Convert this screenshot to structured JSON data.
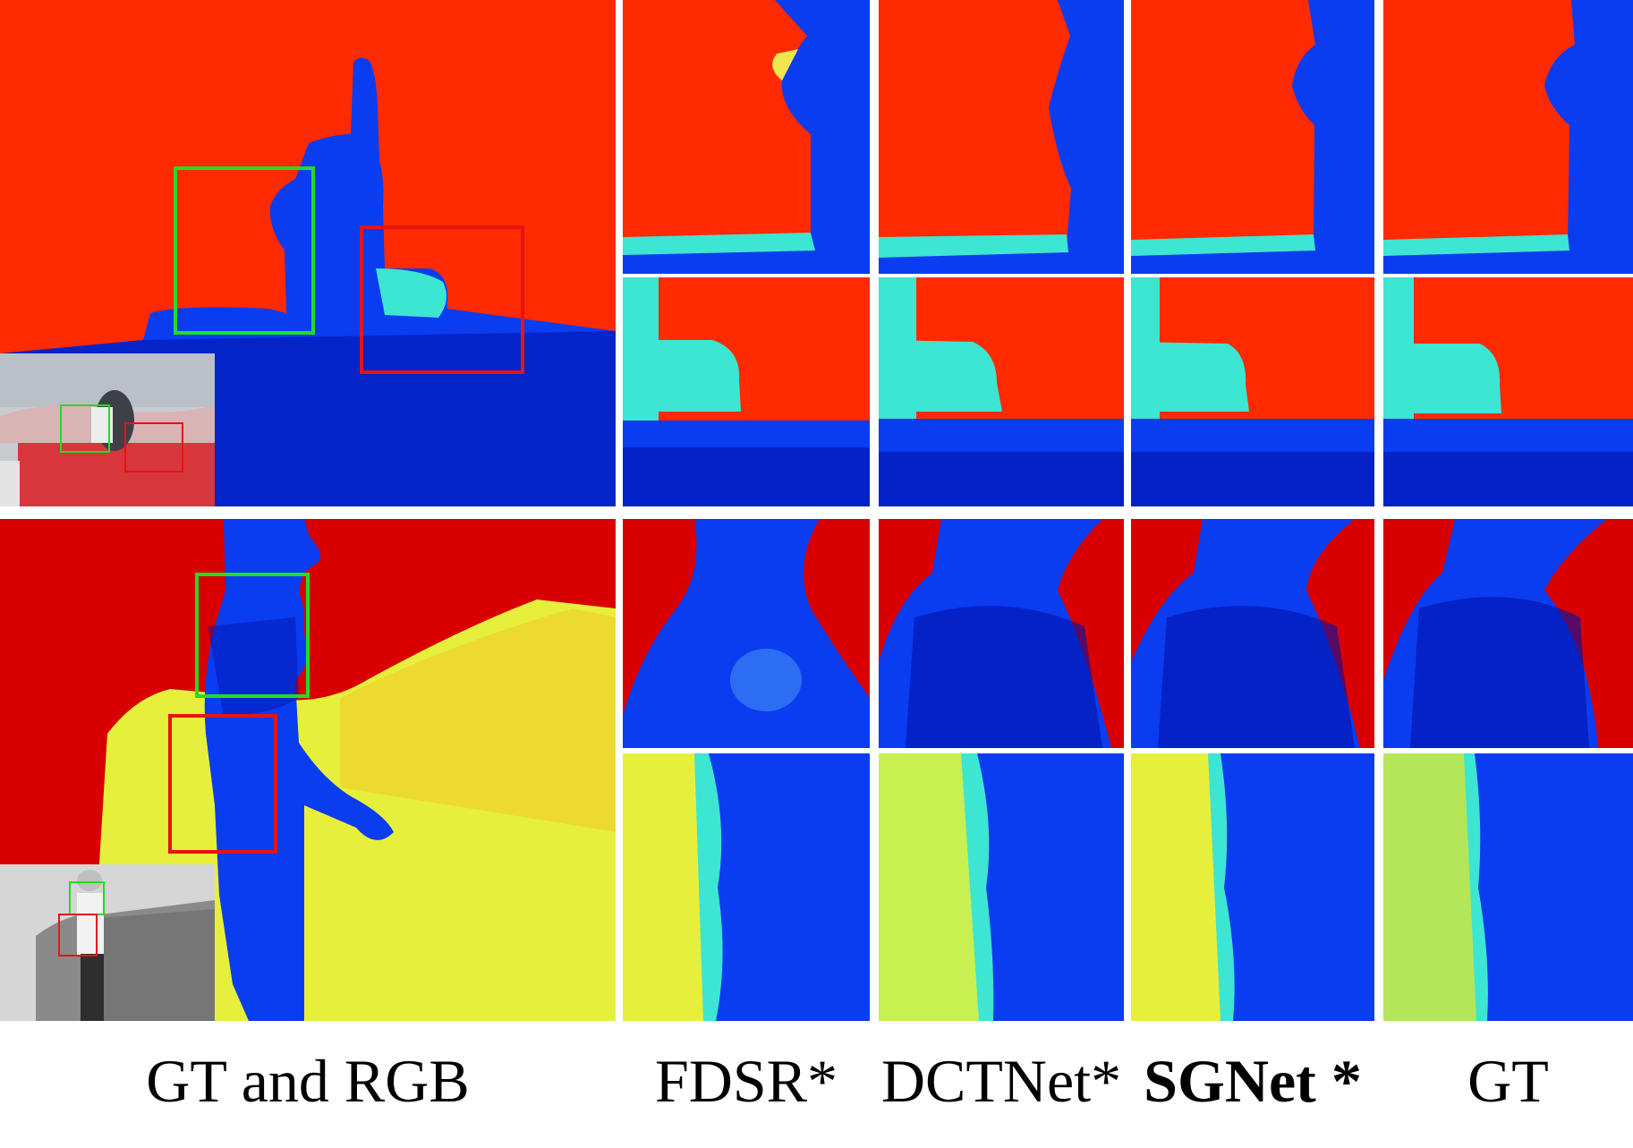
{
  "captions": {
    "gt_rgb": "GT and RGB",
    "fdsr": "FDSR*",
    "dctnet": "DCTNet*",
    "sgnet": "SGNet *",
    "gt": "GT"
  },
  "colors": {
    "depth_red": "#ff2a00",
    "depth_dark_red": "#d80000",
    "depth_blue": "#0a3cf0",
    "depth_dark_blue": "#0010a8",
    "depth_cyan": "#3ce6d2",
    "depth_yellow": "#e6f03c",
    "zoom_box_green": "#22dd22",
    "zoom_box_red": "#e61414"
  },
  "icons": {
    "depth_map": "depth-map-image",
    "rgb_inset": "rgb-photo-image"
  }
}
